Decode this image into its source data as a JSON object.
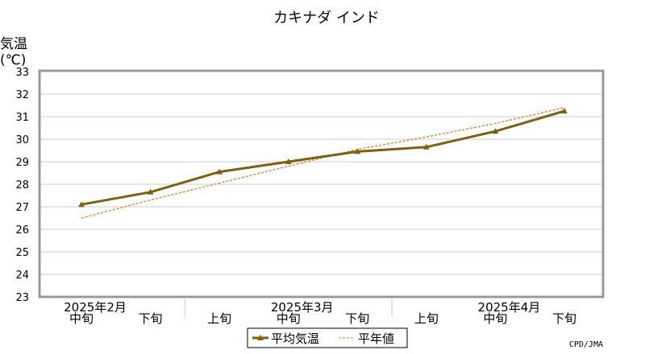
{
  "chart_data": {
    "type": "line",
    "title": "カキナダ インド",
    "ylabel_line1": "気温",
    "ylabel_line2": "(℃)",
    "ylim": [
      23,
      33
    ],
    "yticks": [
      23,
      24,
      25,
      26,
      27,
      28,
      29,
      30,
      31,
      32,
      33
    ],
    "grid": true,
    "categories": [
      "中旬",
      "下旬",
      "上旬",
      "中旬",
      "下旬",
      "上旬",
      "中旬",
      "下旬"
    ],
    "months": [
      {
        "label": "2025年2月",
        "at": "中旬"
      },
      {
        "label": "2025年3月",
        "at": "中旬"
      },
      {
        "label": "2025年4月",
        "at": "中旬"
      }
    ],
    "series": [
      {
        "name": "平均気温",
        "style": "solid-triangle",
        "color": "#806010",
        "values": [
          27.1,
          27.65,
          28.55,
          29.0,
          29.45,
          29.65,
          30.35,
          31.25
        ]
      },
      {
        "name": "平年値",
        "style": "dashed",
        "color": "#e07a1f",
        "values": [
          26.5,
          27.3,
          28.05,
          28.8,
          29.55,
          30.1,
          30.7,
          31.4
        ]
      }
    ],
    "legend_position": "bottom-center",
    "credit": "CPD/JMA",
    "colors": {
      "frame": "#999999",
      "grid": "#cccccc"
    }
  }
}
